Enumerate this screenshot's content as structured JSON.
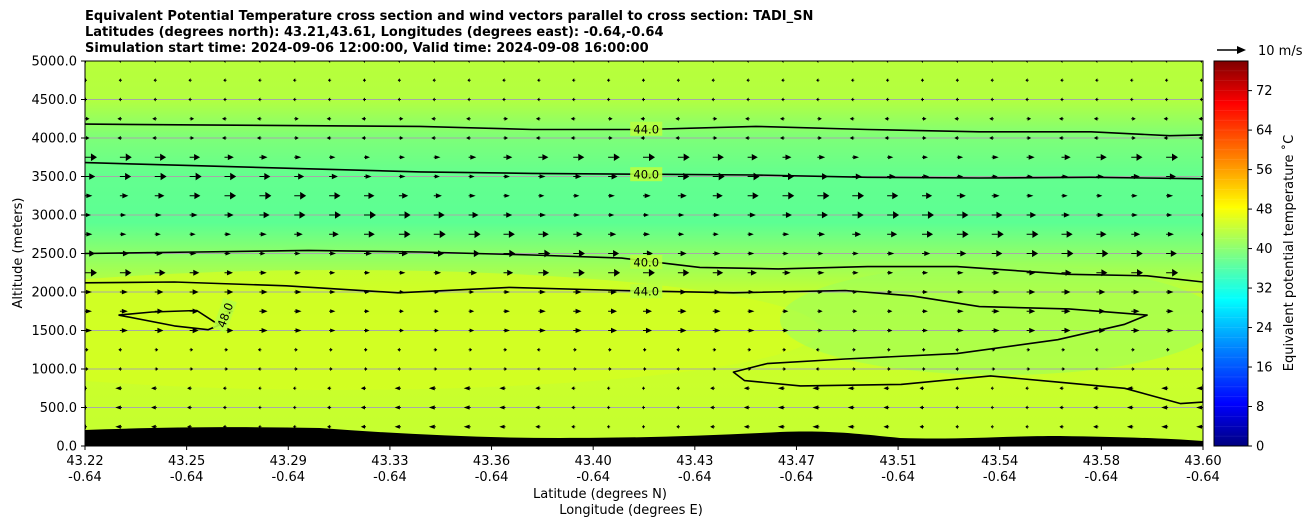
{
  "title_lines": [
    "Equivalent Potential Temperature cross section and wind vectors parallel to cross section: TADI_SN",
    "Latitudes (degrees north): 43.21,43.61, Longitudes (degrees east): -0.64,-0.64",
    "Simulation start time: 2024-09-06 12:00:00, Valid time: 2024-09-08 16:00:00"
  ],
  "chart_data": {
    "type": "heatmap",
    "x_lat_ticks": [
      "43.22",
      "43.25",
      "43.29",
      "43.33",
      "43.36",
      "43.40",
      "43.43",
      "43.47",
      "43.51",
      "43.54",
      "43.58",
      "43.60"
    ],
    "x_lon_ticks": [
      "-0.64",
      "-0.64",
      "-0.64",
      "-0.64",
      "-0.64",
      "-0.64",
      "-0.64",
      "-0.64",
      "-0.64",
      "-0.64",
      "-0.64",
      "-0.64"
    ],
    "xlabel_lat": "Latitude (degrees N)",
    "xlabel_lon": "Longitude (degrees E)",
    "ylabel": "Altitude (meters)",
    "y_ticks": [
      "0.0",
      "500.0",
      "1000.0",
      "1500.0",
      "2000.0",
      "2500.0",
      "3000.0",
      "3500.0",
      "4000.0",
      "4500.0",
      "5000.0"
    ],
    "ylim": [
      0,
      5000
    ],
    "grid": "horizontal",
    "colorbar": {
      "label": "Equivalent potential temperature  ˚C",
      "ticks": [
        "0",
        "8",
        "16",
        "24",
        "32",
        "40",
        "48",
        "56",
        "64",
        "72"
      ],
      "range": [
        0,
        78
      ]
    },
    "wind_key": "10 m/s",
    "contour_labels": [
      {
        "text": "44.0",
        "x": 0.502,
        "alt": 4120
      },
      {
        "text": "40.0",
        "x": 0.502,
        "alt": 3530
      },
      {
        "text": "40.0",
        "x": 0.502,
        "alt": 2390
      },
      {
        "text": "44.0",
        "x": 0.502,
        "alt": 2010
      },
      {
        "text": "48.0",
        "x": 0.125,
        "alt": 1700
      }
    ],
    "contours": [
      {
        "level": 44,
        "points": [
          [
            0,
            4180
          ],
          [
            0.1,
            4170
          ],
          [
            0.2,
            4160
          ],
          [
            0.3,
            4150
          ],
          [
            0.4,
            4110
          ],
          [
            0.5,
            4110
          ],
          [
            0.6,
            4150
          ],
          [
            0.7,
            4110
          ],
          [
            0.8,
            4080
          ],
          [
            0.9,
            4080
          ],
          [
            0.97,
            4030
          ],
          [
            1,
            4040
          ]
        ]
      },
      {
        "level": 40,
        "points": [
          [
            0,
            3680
          ],
          [
            0.1,
            3640
          ],
          [
            0.2,
            3600
          ],
          [
            0.3,
            3560
          ],
          [
            0.4,
            3540
          ],
          [
            0.5,
            3530
          ],
          [
            0.6,
            3520
          ],
          [
            0.7,
            3490
          ],
          [
            0.8,
            3480
          ],
          [
            0.9,
            3490
          ],
          [
            1,
            3470
          ]
        ]
      },
      {
        "level": 40,
        "points": [
          [
            0,
            2500
          ],
          [
            0.1,
            2520
          ],
          [
            0.2,
            2540
          ],
          [
            0.3,
            2520
          ],
          [
            0.4,
            2480
          ],
          [
            0.48,
            2440
          ],
          [
            0.55,
            2320
          ],
          [
            0.62,
            2300
          ],
          [
            0.7,
            2330
          ],
          [
            0.78,
            2330
          ],
          [
            0.88,
            2230
          ],
          [
            0.95,
            2210
          ],
          [
            1,
            2130
          ]
        ]
      },
      {
        "level": 44,
        "points": [
          [
            0,
            2120
          ],
          [
            0.08,
            2130
          ],
          [
            0.18,
            2080
          ],
          [
            0.28,
            1990
          ],
          [
            0.38,
            2060
          ],
          [
            0.48,
            2020
          ],
          [
            0.58,
            1990
          ],
          [
            0.68,
            2020
          ],
          [
            0.74,
            1950
          ],
          [
            0.8,
            1810
          ],
          [
            0.88,
            1780
          ],
          [
            0.95,
            1700
          ],
          [
            0.93,
            1580
          ],
          [
            0.87,
            1380
          ],
          [
            0.78,
            1200
          ],
          [
            0.68,
            1130
          ],
          [
            0.61,
            1070
          ],
          [
            0.58,
            960
          ],
          [
            0.59,
            850
          ],
          [
            0.64,
            780
          ],
          [
            0.73,
            800
          ],
          [
            0.81,
            910
          ],
          [
            0.87,
            830
          ],
          [
            0.93,
            750
          ],
          [
            0.98,
            550
          ],
          [
            1,
            570
          ],
          [
            1,
            800
          ]
        ]
      },
      {
        "level": 48,
        "points": [
          [
            0.03,
            1700
          ],
          [
            0.08,
            1560
          ],
          [
            0.11,
            1510
          ],
          [
            0.12,
            1570
          ],
          [
            0.1,
            1760
          ],
          [
            0.06,
            1740
          ],
          [
            0.03,
            1700
          ]
        ]
      }
    ]
  }
}
